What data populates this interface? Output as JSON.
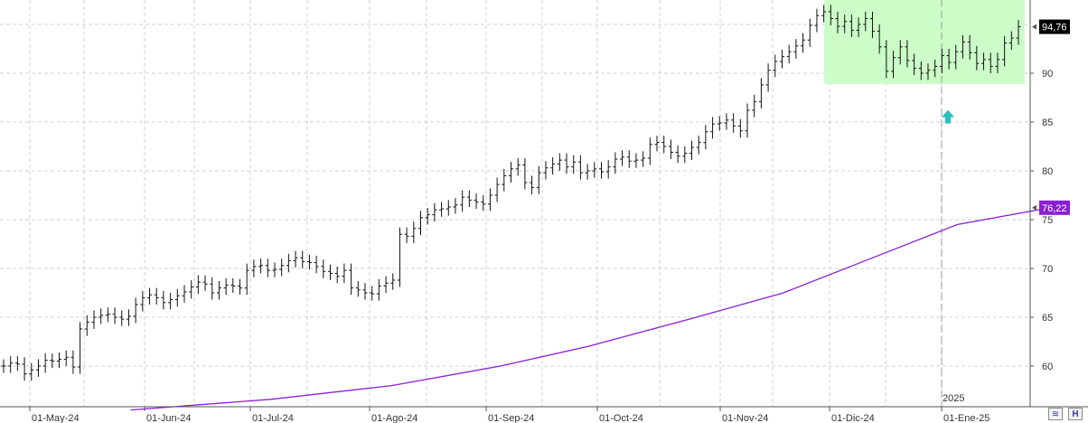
{
  "chart_data": {
    "type": "ohlc",
    "y_ticks": [
      60,
      65,
      70,
      75,
      80,
      85,
      90
    ],
    "x_ticks": [
      "01-May-24",
      "01-Jun-24",
      "01-Jul-24",
      "01-Ago-24",
      "01-Sep-24",
      "01-Oct-24",
      "01-Nov-24",
      "01-Dic-24",
      "01-Ene-25"
    ],
    "year_label": "2025",
    "ylim": [
      55.5,
      97.8
    ],
    "grid": true,
    "price_series": {
      "name": "",
      "last_value": "94,76",
      "closes": [
        60.0,
        60.3,
        60.2,
        59.2,
        59.6,
        60.0,
        60.6,
        60.5,
        60.7,
        60.9,
        59.9,
        63.8,
        64.5,
        65.0,
        65.2,
        65.3,
        65.0,
        64.8,
        65.1,
        66.3,
        67.0,
        67.3,
        67.0,
        66.5,
        66.8,
        67.2,
        67.6,
        68.1,
        68.6,
        68.4,
        67.5,
        68.0,
        68.3,
        68.2,
        68.0,
        69.8,
        70.2,
        70.3,
        69.8,
        69.9,
        70.3,
        70.8,
        71.1,
        70.7,
        70.6,
        70.2,
        69.7,
        69.5,
        69.2,
        69.8,
        68.0,
        67.8,
        67.5,
        67.4,
        68.2,
        68.5,
        68.8,
        73.5,
        73.3,
        74.1,
        75.2,
        75.5,
        76.0,
        76.1,
        76.3,
        76.5,
        77.3,
        77.0,
        76.8,
        76.6,
        77.5,
        78.6,
        79.5,
        80.2,
        80.6,
        78.8,
        78.3,
        79.8,
        80.3,
        80.7,
        81.1,
        80.4,
        80.9,
        79.8,
        80.0,
        80.2,
        79.9,
        80.4,
        81.2,
        81.4,
        81.0,
        81.1,
        81.3,
        82.7,
        82.9,
        82.5,
        81.9,
        81.5,
        81.8,
        82.4,
        82.9,
        84.0,
        84.8,
        84.9,
        85.2,
        84.6,
        84.1,
        86.2,
        87.1,
        88.8,
        90.3,
        91.2,
        91.7,
        92.2,
        92.8,
        93.4,
        94.9,
        95.9,
        96.3,
        95.6,
        94.8,
        95.3,
        94.4,
        95.0,
        95.6,
        94.3,
        92.7,
        90.2,
        91.6,
        92.7,
        91.3,
        90.5,
        90.0,
        90.3,
        90.7,
        91.8,
        91.1,
        92.2,
        93.2,
        92.1,
        91.0,
        91.4,
        90.7,
        91.4,
        93.1,
        93.6,
        94.76
      ]
    },
    "moving_average": {
      "name": "",
      "color": "#8b1fd6",
      "last_value": "76,22",
      "points": [
        [
          0.12,
          55.5
        ],
        [
          0.25,
          56.6
        ],
        [
          0.36,
          58.0
        ],
        [
          0.46,
          60.0
        ],
        [
          0.54,
          62.0
        ],
        [
          0.64,
          65.0
        ],
        [
          0.72,
          67.5
        ],
        [
          0.8,
          71.0
        ],
        [
          0.88,
          74.5
        ],
        [
          0.965,
          76.22
        ]
      ]
    },
    "highlight_box": {
      "color": "#ccfcc8",
      "y_range": [
        88.9,
        97.8
      ]
    },
    "marker": {
      "type": "up-arrow",
      "color": "#27c1bf",
      "y": 85.5
    },
    "colors": {
      "price_bar": "#111111",
      "grid": "#d2d2d2",
      "last_price_badge": "#000000",
      "ma_badge": "#8b1fd6",
      "date_cursor": "#9a9a9a"
    }
  },
  "toolbar": {
    "zoom_icon_label": "≋",
    "h_button_label": "H"
  }
}
